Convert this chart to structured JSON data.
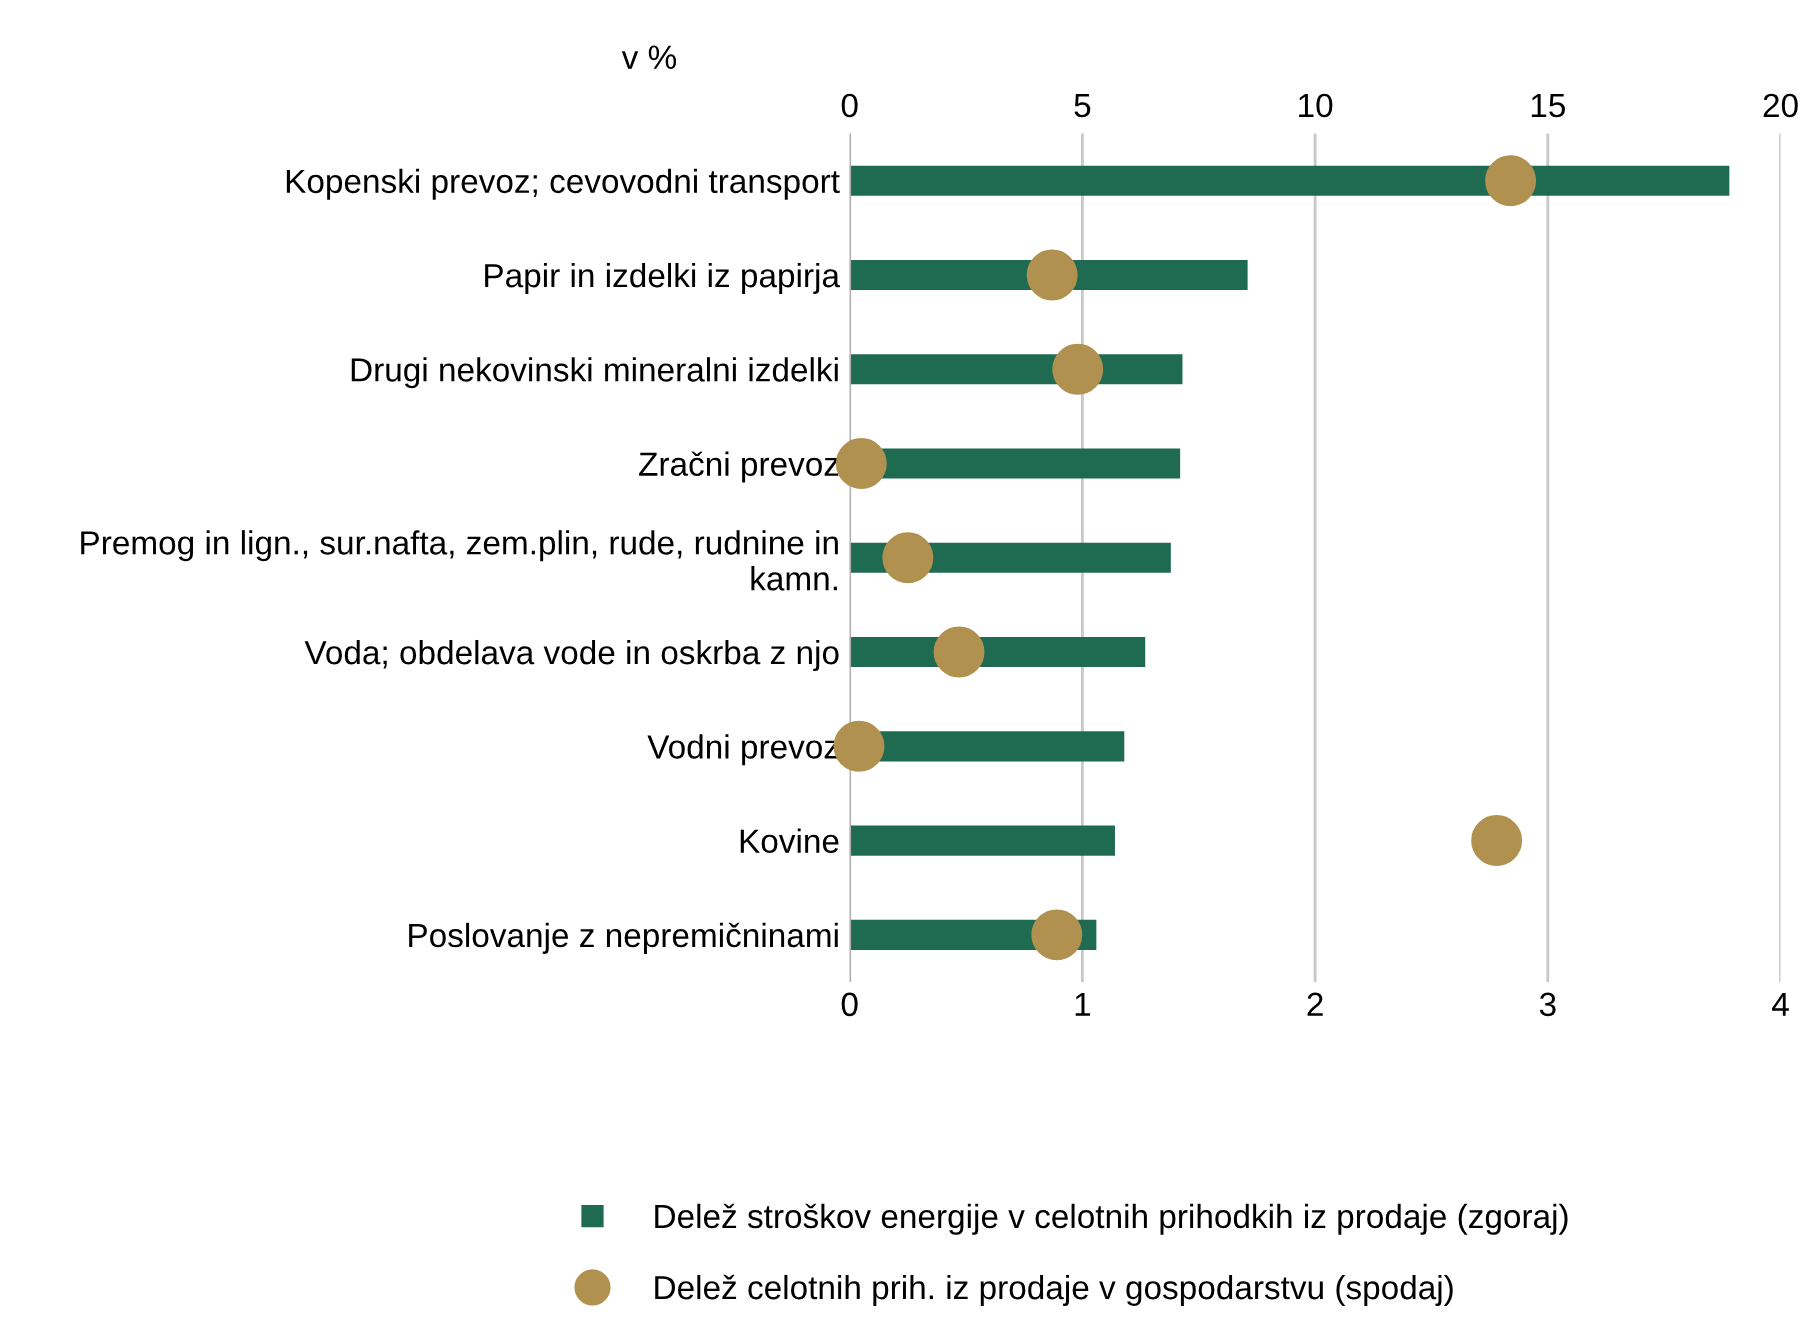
{
  "chart_data": {
    "type": "bar",
    "orientation": "horizontal",
    "ylabel": "v %",
    "categories": [
      "Kopenski prevoz; cevovodni transport",
      "Papir in izdelki iz papirja",
      "Drugi nekovinski mineralni izdelki",
      "Zračni prevoz",
      "Premog in lign., sur.nafta, zem.plin, rude, rudnine in kamn.",
      "Voda; obdelava vode in oskrba z njo",
      "Vodni prevoz",
      "Kovine",
      "Poslovanje z nepremičninami"
    ],
    "series": [
      {
        "name": "Delež stroškov energije v celotnih prihodkih iz prodaje (zgoraj)",
        "axis": "x2",
        "color": "#1f6b52",
        "values": [
          18.9,
          8.55,
          7.15,
          7.1,
          6.9,
          6.35,
          5.9,
          5.7,
          5.3
        ]
      },
      {
        "name": "Delež celotnih prih. iz prodaje v gospodarstvu (spodaj)",
        "type": "scatter",
        "marker": "circle",
        "color": "#b0914f",
        "values": [
          2.84,
          0.87,
          0.98,
          0.05,
          0.25,
          0.47,
          0.04,
          2.78,
          0.89
        ]
      }
    ],
    "xlim": [
      0,
      4
    ],
    "xticks": [
      0,
      1,
      2,
      3,
      4
    ],
    "x2lim": [
      0,
      20
    ],
    "x2ticks": [
      0,
      5,
      10,
      15,
      20
    ],
    "grid": "x",
    "legend": "bottom"
  }
}
